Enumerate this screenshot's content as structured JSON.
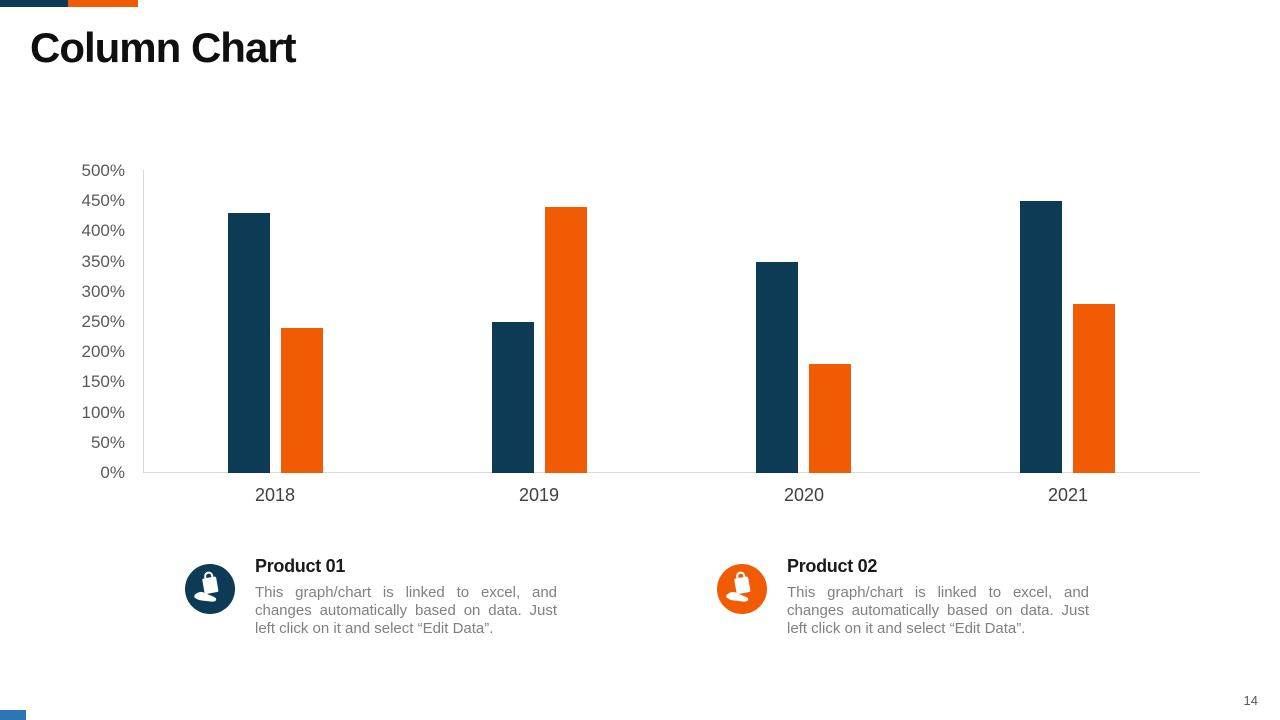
{
  "slide": {
    "title": "Column Chart",
    "page_number": "14"
  },
  "theme": {
    "navy": "#0D3A54",
    "orange": "#F05B04",
    "axis_line_color": "#D9D9D9",
    "ytick_color": "#595959",
    "xtick_color": "#404040",
    "footer_accent_color": "#2E75B6"
  },
  "chart_data": {
    "type": "bar",
    "title": "",
    "xlabel": "",
    "ylabel": "",
    "categories": [
      "2018",
      "2019",
      "2020",
      "2021"
    ],
    "series": [
      {
        "name": "Product 01",
        "color": "#0D3A54",
        "values": [
          430,
          250,
          350,
          450
        ]
      },
      {
        "name": "Product 02",
        "color": "#F05B04",
        "values": [
          240,
          440,
          180,
          280
        ]
      }
    ],
    "ylim": [
      0,
      500
    ],
    "ytick_step": 50,
    "ytick_suffix": "%",
    "grid": false,
    "legend_position": "below-as-description-items"
  },
  "legend_items": [
    {
      "icon": "hand-holding-bag-icon",
      "icon_bg": "#0D3A54",
      "title": "Product 01",
      "description": "This graph/chart is linked to excel, and changes automatically based on data. Just left click on it and select “Edit Data”."
    },
    {
      "icon": "hand-holding-bag-icon",
      "icon_bg": "#F05B04",
      "title": "Product 02",
      "description": "This graph/chart is linked to excel, and changes automatically based on data. Just left click on it and select “Edit Data”."
    }
  ]
}
